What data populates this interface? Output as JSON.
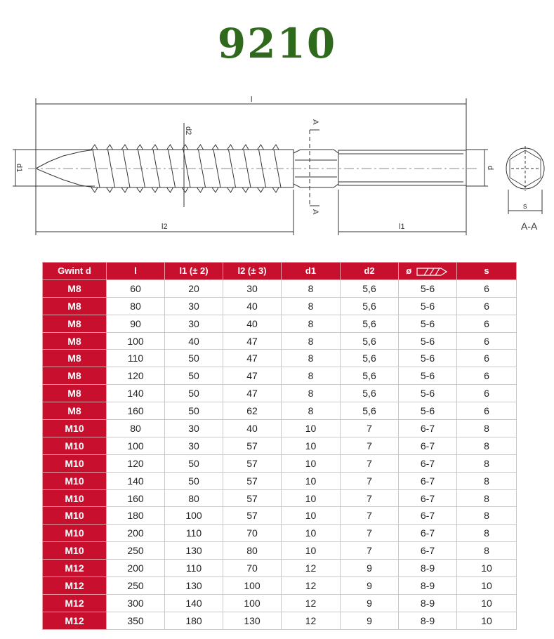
{
  "title": "9210",
  "drawing": {
    "labels": {
      "l": "l",
      "l2": "l2",
      "l1": "l1",
      "d1": "d1",
      "d2": "d2",
      "d": "d",
      "s": "s",
      "section_mark": "A",
      "section": "A-A"
    }
  },
  "table": {
    "headers": [
      "Gwint d",
      "l",
      "l1 (± 2)",
      "l2 (± 3)",
      "d1",
      "d2",
      "ø",
      "s"
    ],
    "drill_icon": "drill-bit-icon",
    "rows": [
      [
        "M8",
        "60",
        "20",
        "30",
        "8",
        "5,6",
        "5-6",
        "6"
      ],
      [
        "M8",
        "80",
        "30",
        "40",
        "8",
        "5,6",
        "5-6",
        "6"
      ],
      [
        "M8",
        "90",
        "30",
        "40",
        "8",
        "5,6",
        "5-6",
        "6"
      ],
      [
        "M8",
        "100",
        "40",
        "47",
        "8",
        "5,6",
        "5-6",
        "6"
      ],
      [
        "M8",
        "110",
        "50",
        "47",
        "8",
        "5,6",
        "5-6",
        "6"
      ],
      [
        "M8",
        "120",
        "50",
        "47",
        "8",
        "5,6",
        "5-6",
        "6"
      ],
      [
        "M8",
        "140",
        "50",
        "47",
        "8",
        "5,6",
        "5-6",
        "6"
      ],
      [
        "M8",
        "160",
        "50",
        "62",
        "8",
        "5,6",
        "5-6",
        "6"
      ],
      [
        "M10",
        "80",
        "30",
        "40",
        "10",
        "7",
        "6-7",
        "8"
      ],
      [
        "M10",
        "100",
        "30",
        "57",
        "10",
        "7",
        "6-7",
        "8"
      ],
      [
        "M10",
        "120",
        "50",
        "57",
        "10",
        "7",
        "6-7",
        "8"
      ],
      [
        "M10",
        "140",
        "50",
        "57",
        "10",
        "7",
        "6-7",
        "8"
      ],
      [
        "M10",
        "160",
        "80",
        "57",
        "10",
        "7",
        "6-7",
        "8"
      ],
      [
        "M10",
        "180",
        "100",
        "57",
        "10",
        "7",
        "6-7",
        "8"
      ],
      [
        "M10",
        "200",
        "110",
        "70",
        "10",
        "7",
        "6-7",
        "8"
      ],
      [
        "M10",
        "250",
        "130",
        "80",
        "10",
        "7",
        "6-7",
        "8"
      ],
      [
        "M12",
        "200",
        "110",
        "70",
        "12",
        "9",
        "8-9",
        "10"
      ],
      [
        "M12",
        "250",
        "130",
        "100",
        "12",
        "9",
        "8-9",
        "10"
      ],
      [
        "M12",
        "300",
        "140",
        "100",
        "12",
        "9",
        "8-9",
        "10"
      ],
      [
        "M12",
        "350",
        "180",
        "130",
        "12",
        "9",
        "8-9",
        "10"
      ]
    ]
  },
  "colors": {
    "header": "#c8102e",
    "title": "#2f6a1c"
  }
}
